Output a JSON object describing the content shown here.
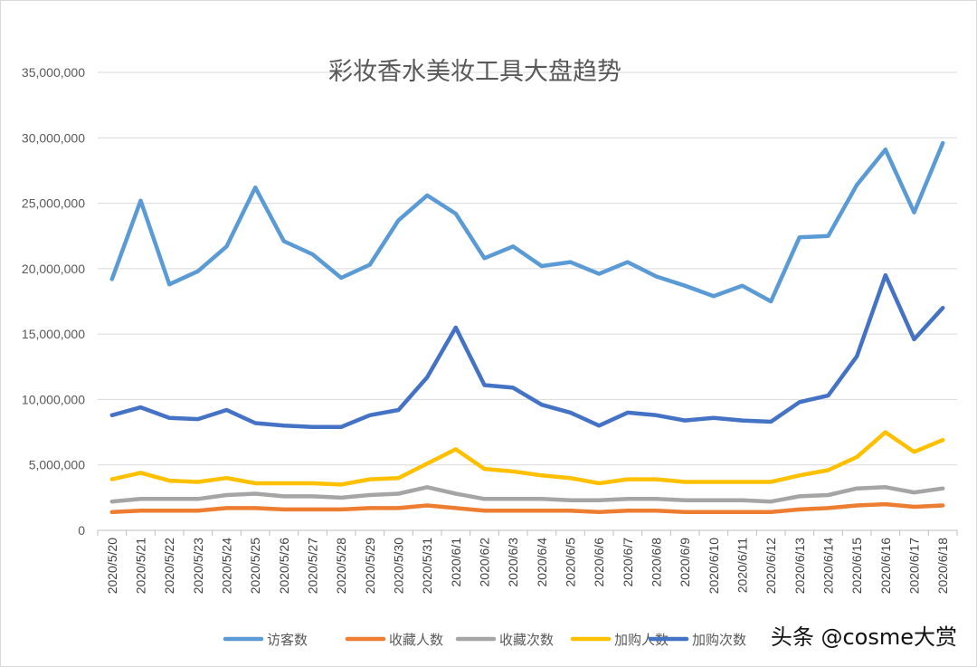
{
  "chart_data": {
    "type": "line",
    "title": "彩妆香水美妆工具大盘趋势",
    "xlabel": "",
    "ylabel": "",
    "ylim": [
      0,
      35000000
    ],
    "yticks": [
      "0",
      "5,000,000",
      "10,000,000",
      "15,000,000",
      "20,000,000",
      "25,000,000",
      "30,000,000",
      "35,000,000"
    ],
    "grid": true,
    "legend_position": "bottom",
    "categories": [
      "2020/5/20",
      "2020/5/21",
      "2020/5/22",
      "2020/5/23",
      "2020/5/24",
      "2020/5/25",
      "2020/5/26",
      "2020/5/27",
      "2020/5/28",
      "2020/5/29",
      "2020/5/30",
      "2020/5/31",
      "2020/6/1",
      "2020/6/2",
      "2020/6/3",
      "2020/6/4",
      "2020/6/5",
      "2020/6/6",
      "2020/6/7",
      "2020/6/8",
      "2020/6/9",
      "2020/6/10",
      "2020/6/11",
      "2020/6/12",
      "2020/6/13",
      "2020/6/14",
      "2020/6/15",
      "2020/6/16",
      "2020/6/17",
      "2020/6/18"
    ],
    "series": [
      {
        "name": "访客数",
        "color": "#5B9BD5",
        "values": [
          19200000,
          25200000,
          18800000,
          19800000,
          21700000,
          26200000,
          22100000,
          21100000,
          19300000,
          20300000,
          23700000,
          25600000,
          24200000,
          20800000,
          21700000,
          20200000,
          20500000,
          19600000,
          20500000,
          19400000,
          18700000,
          17900000,
          18700000,
          17500000,
          22400000,
          22500000,
          26400000,
          29100000,
          24300000,
          29600000
        ]
      },
      {
        "name": "收藏人数",
        "color": "#ED7D31",
        "values": [
          1400000,
          1500000,
          1500000,
          1500000,
          1700000,
          1700000,
          1600000,
          1600000,
          1600000,
          1700000,
          1700000,
          1900000,
          1700000,
          1500000,
          1500000,
          1500000,
          1500000,
          1400000,
          1500000,
          1500000,
          1400000,
          1400000,
          1400000,
          1400000,
          1600000,
          1700000,
          1900000,
          2000000,
          1800000,
          1900000
        ]
      },
      {
        "name": "收藏次数",
        "color": "#A5A5A5",
        "values": [
          2200000,
          2400000,
          2400000,
          2400000,
          2700000,
          2800000,
          2600000,
          2600000,
          2500000,
          2700000,
          2800000,
          3300000,
          2800000,
          2400000,
          2400000,
          2400000,
          2300000,
          2300000,
          2400000,
          2400000,
          2300000,
          2300000,
          2300000,
          2200000,
          2600000,
          2700000,
          3200000,
          3300000,
          2900000,
          3200000
        ]
      },
      {
        "name": "加购人数",
        "color": "#FFC000",
        "values": [
          3900000,
          4400000,
          3800000,
          3700000,
          4000000,
          3600000,
          3600000,
          3600000,
          3500000,
          3900000,
          4000000,
          5100000,
          6200000,
          4700000,
          4500000,
          4200000,
          4000000,
          3600000,
          3900000,
          3900000,
          3700000,
          3700000,
          3700000,
          3700000,
          4200000,
          4600000,
          5600000,
          7500000,
          6000000,
          6900000
        ]
      },
      {
        "name": "加购次数",
        "color": "#4472C4",
        "values": [
          8800000,
          9400000,
          8600000,
          8500000,
          9200000,
          8200000,
          8000000,
          7900000,
          7900000,
          8800000,
          9200000,
          11700000,
          15500000,
          11100000,
          10900000,
          9600000,
          9000000,
          8000000,
          9000000,
          8800000,
          8400000,
          8600000,
          8400000,
          8300000,
          9800000,
          10300000,
          13300000,
          19500000,
          14600000,
          17000000
        ]
      }
    ]
  },
  "watermark": "头条 @cosme大赏"
}
